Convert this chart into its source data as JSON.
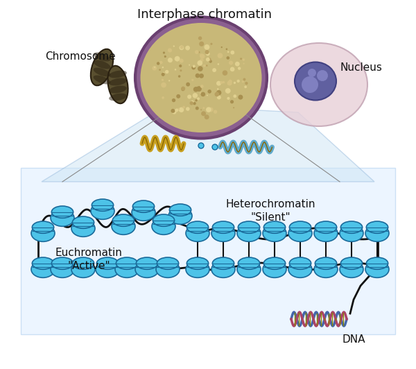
{
  "title": "Interphase chromatin",
  "label_chromosome": "Chromosome",
  "label_nucleus": "Nucleus",
  "label_euchromatin": "Euchromatin\n\"Active\"",
  "label_heterochromatin": "Heterochromatin\n\"Silent\"",
  "label_dna": "DNA",
  "bg_color": "#ffffff",
  "nucleosome_color": "#4dc3e8",
  "nucleosome_edge": "#1a6a9a",
  "dna_color": "#111111",
  "panel_color": "#ddeeff",
  "panel_alpha": 0.55,
  "figsize": [
    6.0,
    5.32
  ],
  "dpi": 100
}
